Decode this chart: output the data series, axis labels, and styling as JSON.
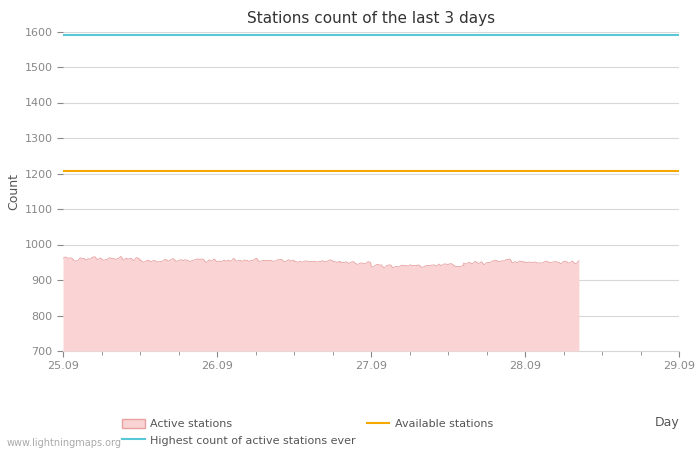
{
  "title": "Stations count of the last 3 days",
  "xlabel": "Day",
  "ylabel": "Count",
  "ylim": [
    700,
    1600
  ],
  "yticks": [
    700,
    800,
    900,
    1000,
    1100,
    1200,
    1300,
    1400,
    1500,
    1600
  ],
  "x_tick_labels": [
    "25.09",
    "26.09",
    "27.09",
    "28.09",
    "29.09"
  ],
  "x_tick_positions": [
    0,
    1,
    2,
    3,
    4
  ],
  "highest_ever_value": 1590,
  "available_stations_value": 1207,
  "data_end_x": 3.35,
  "fill_color": "#fad4d4",
  "fill_edge_color": "#e8a0a0",
  "highest_ever_color": "#58c8d8",
  "available_stations_color": "#f5a800",
  "background_color": "#ffffff",
  "grid_color": "#d8d8d8",
  "title_color": "#333333",
  "label_color": "#555555",
  "tick_color": "#888888",
  "watermark": "www.lightningmaps.org",
  "legend_labels": [
    "Active stations",
    "Highest count of active stations ever",
    "Available stations"
  ]
}
